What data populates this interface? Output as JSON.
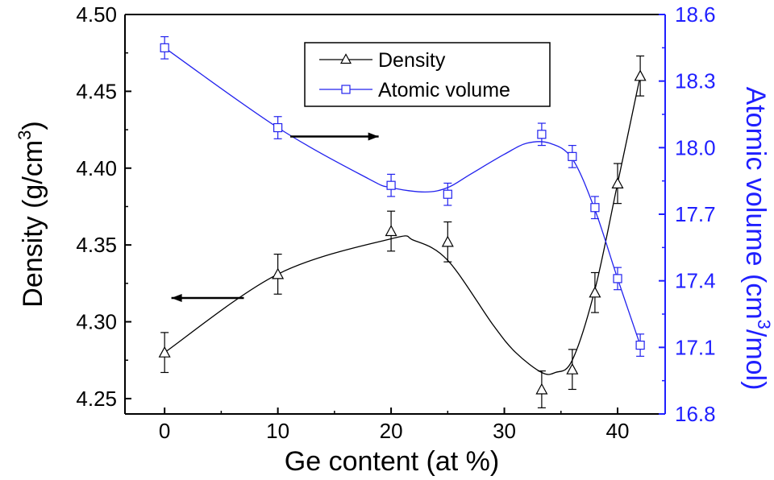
{
  "chart_data": {
    "type": "line",
    "title": "",
    "xlabel": "Ge content (at %)",
    "ylabel_left": {
      "pre": "Density (g/cm",
      "sup": "3",
      "post": ")"
    },
    "ylabel_right": {
      "pre": "Atomic volume (cm",
      "sup": "3",
      "post": "/mol)"
    },
    "xlim": [
      -3.5,
      44.2
    ],
    "ylim_left": [
      4.24,
      4.5
    ],
    "ylim_right": [
      16.8,
      18.6
    ],
    "x_ticks": [
      "0",
      "10",
      "20",
      "30",
      "40"
    ],
    "y_ticks_left": [
      "4.25",
      "4.30",
      "4.35",
      "4.40",
      "4.45",
      "4.50"
    ],
    "y_ticks_right": [
      "16.8",
      "17.1",
      "17.4",
      "17.7",
      "18.0",
      "18.3",
      "18.6"
    ],
    "grid": false,
    "legend_position": "top-center",
    "series": [
      {
        "name": "Density",
        "axis": "left",
        "marker": "triangle",
        "color": "#000000",
        "x": [
          0,
          10,
          20,
          25,
          33.3,
          36,
          38,
          40,
          42
        ],
        "y": [
          4.28,
          4.331,
          4.359,
          4.352,
          4.256,
          4.269,
          4.319,
          4.39,
          4.46
        ],
        "error": [
          0.013,
          0.013,
          0.013,
          0.013,
          0.012,
          0.013,
          0.013,
          0.013,
          0.013
        ],
        "fit_x": [
          0,
          10,
          20,
          22,
          25,
          29,
          31,
          33.3,
          34.5,
          36,
          38,
          40,
          42
        ],
        "fit_y": [
          4.28,
          4.331,
          4.354,
          4.353,
          4.34,
          4.298,
          4.28,
          4.267,
          4.267,
          4.275,
          4.321,
          4.39,
          4.46
        ]
      },
      {
        "name": "Atomic volume",
        "axis": "right",
        "marker": "square",
        "color": "#2222ee",
        "x": [
          0,
          10,
          20,
          25,
          33.3,
          36,
          38,
          40,
          42
        ],
        "y": [
          18.45,
          18.09,
          17.83,
          17.79,
          18.06,
          17.96,
          17.73,
          17.41,
          17.11
        ],
        "error": [
          0.05,
          0.05,
          0.05,
          0.05,
          0.05,
          0.05,
          0.05,
          0.05,
          0.05
        ],
        "fit_x": [
          0,
          10,
          18,
          20,
          23,
          25,
          27,
          30,
          32,
          34,
          36,
          38,
          40,
          42
        ],
        "fit_y": [
          18.45,
          18.09,
          17.86,
          17.82,
          17.8,
          17.82,
          17.88,
          17.97,
          18.02,
          18.02,
          17.95,
          17.72,
          17.41,
          17.11
        ]
      }
    ],
    "annotations": [
      {
        "type": "arrow",
        "direction": "right",
        "points_to_axis": "right",
        "x_from": 11.1,
        "x_to": 18.9,
        "y_right": 18.05
      },
      {
        "type": "arrow",
        "direction": "left",
        "points_to_axis": "left",
        "x_from": 7.0,
        "x_to": 0.6,
        "y_left": 4.3155
      }
    ],
    "colors": {
      "left_axis": "#000000",
      "right_axis": "#1f1fff",
      "series_blue": "#2222ee",
      "series_black": "#000000"
    }
  }
}
